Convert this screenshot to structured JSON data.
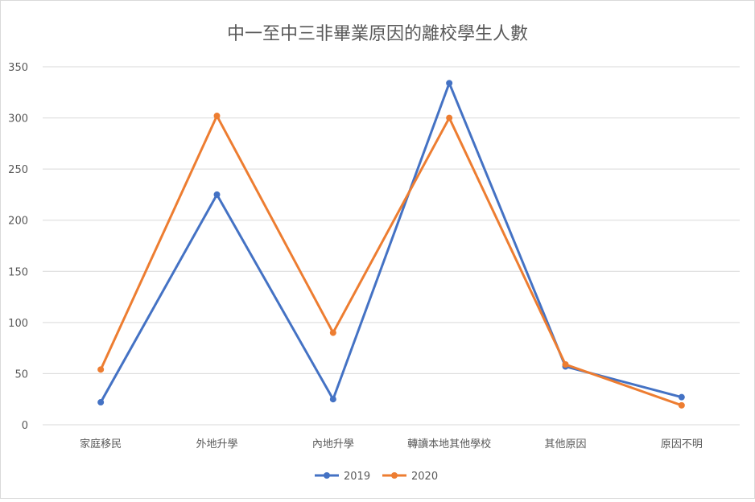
{
  "chart_data": {
    "type": "line",
    "title": "中一至中三非畢業原因的離校學生人數",
    "xlabel": "",
    "ylabel": "",
    "categories": [
      "家庭移民",
      "外地升學",
      "內地升學",
      "轉讀本地其他學校",
      "其他原因",
      "原因不明"
    ],
    "series": [
      {
        "name": "2019",
        "color": "#4472c4",
        "values": [
          22,
          225,
          25,
          334,
          57,
          27
        ]
      },
      {
        "name": "2020",
        "color": "#ed7d31",
        "values": [
          54,
          302,
          90,
          300,
          59,
          19
        ]
      }
    ],
    "ylim": [
      0,
      350
    ],
    "yticks": [
      0,
      50,
      100,
      150,
      200,
      250,
      300,
      350
    ],
    "grid": true,
    "legend": "bottom"
  }
}
